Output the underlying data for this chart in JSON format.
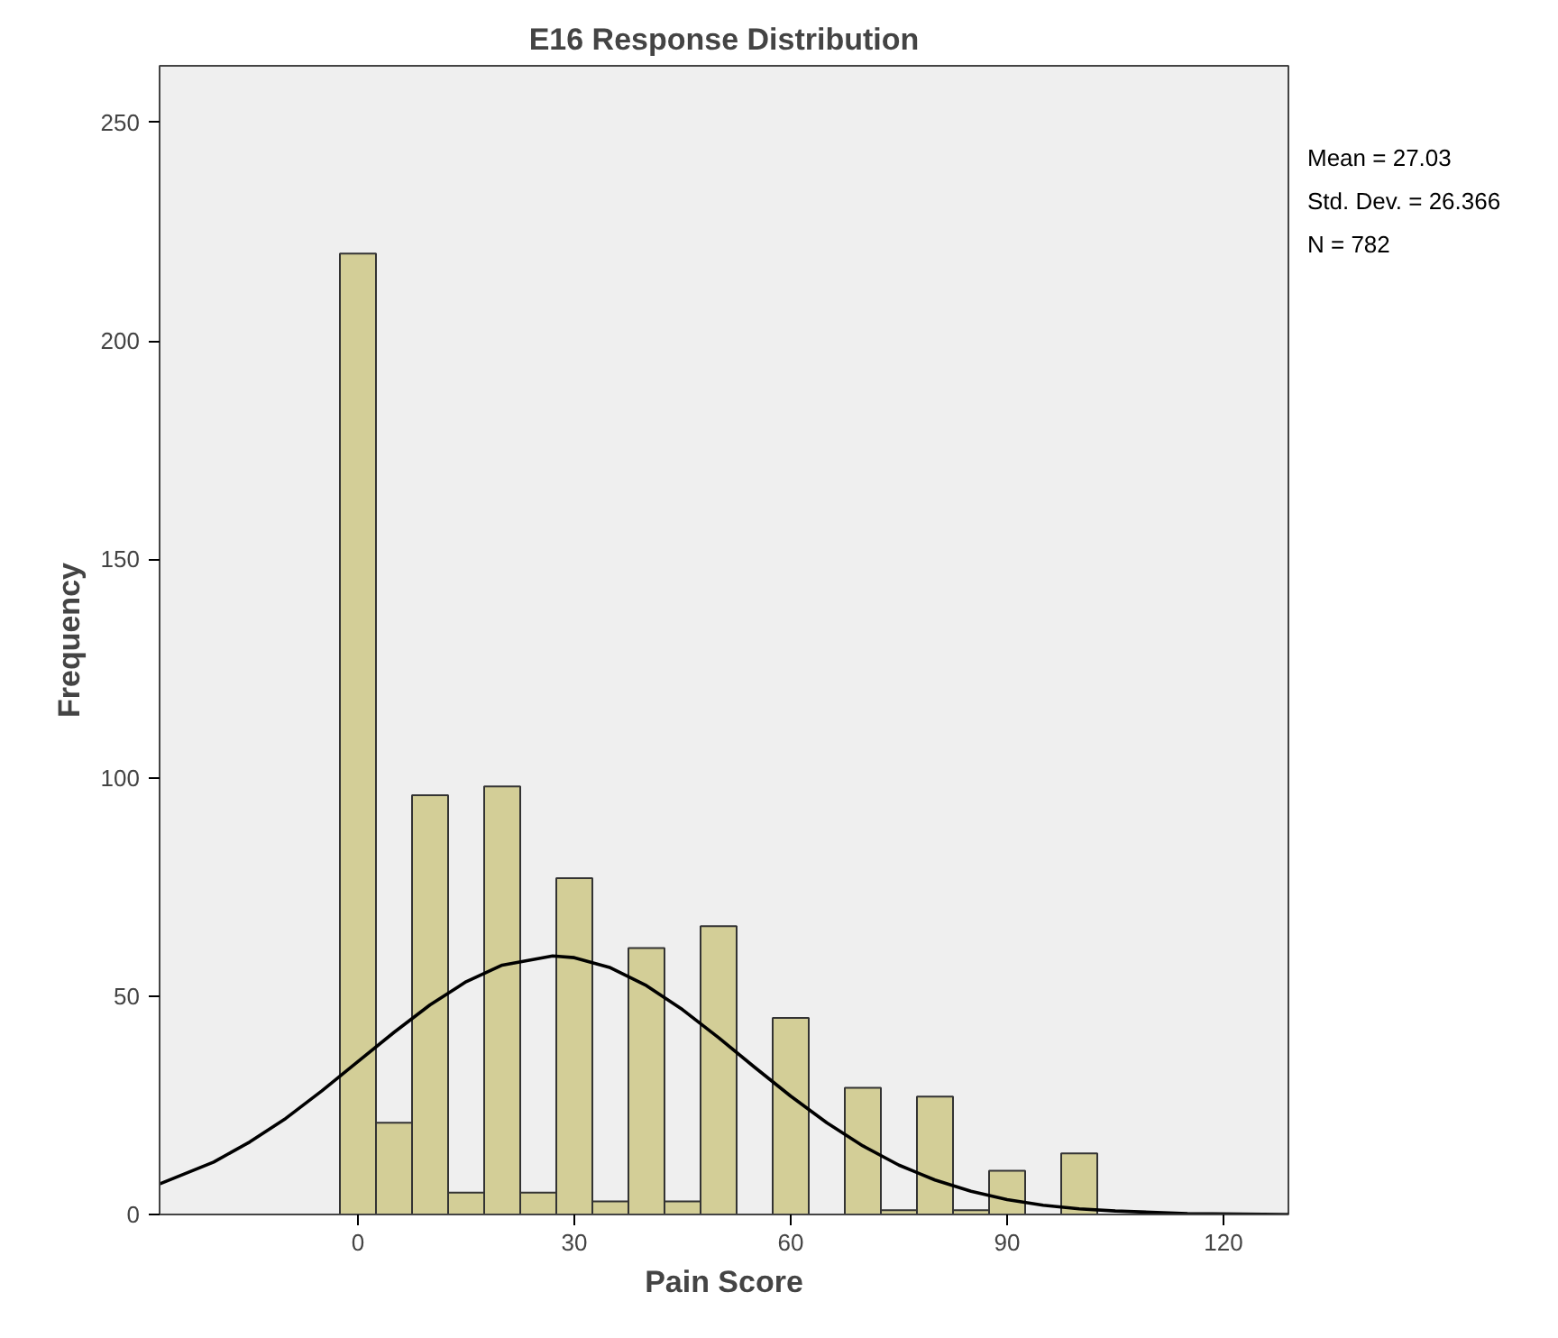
{
  "chart_data": {
    "type": "histogram",
    "title": "E16 Response Distribution",
    "xlabel": "Pain Score",
    "ylabel": "Frequency",
    "xlim": [
      -27.5,
      129
    ],
    "ylim": [
      0,
      263
    ],
    "xticks": [
      0,
      30,
      60,
      90,
      120
    ],
    "yticks": [
      0,
      50,
      100,
      150,
      200,
      250
    ],
    "grid": false,
    "series": [
      {
        "color": "#d3ce97",
        "bins": [
          -2.5,
          2.5,
          7.5,
          12.5,
          17.5,
          22.5,
          27.5,
          32.5,
          37.5,
          42.5,
          47.5,
          52.5,
          57.5,
          62.5,
          67.5,
          72.5,
          77.5,
          82.5,
          87.5,
          92.5,
          97.5,
          102.5
        ],
        "values": [
          220,
          21,
          96,
          5,
          98,
          5,
          77,
          3,
          61,
          3,
          66,
          0,
          45,
          0,
          29,
          1,
          27,
          1,
          10,
          0,
          14
        ]
      },
      {
        "type": "line",
        "color": "#000000",
        "x": [
          -27.5,
          -20,
          -15,
          -10,
          -5,
          0,
          5,
          10,
          15,
          20,
          27,
          30,
          35,
          40,
          45,
          50,
          55,
          60,
          65,
          70,
          75,
          80,
          85,
          90,
          95,
          100,
          105,
          115,
          129
        ],
        "values": [
          7,
          12,
          16.6,
          22,
          28.3,
          35,
          41.7,
          48,
          53.3,
          57.1,
          59.2,
          58.8,
          56.5,
          52.4,
          46.9,
          40.5,
          33.7,
          27.1,
          21,
          15.7,
          11.3,
          7.9,
          5.3,
          3.4,
          2.1,
          1.3,
          0.8,
          0.2,
          0
        ]
      }
    ],
    "annotations": [
      "Mean = 27.03",
      "Std. Dev. = 26.366",
      "N = 782"
    ]
  }
}
